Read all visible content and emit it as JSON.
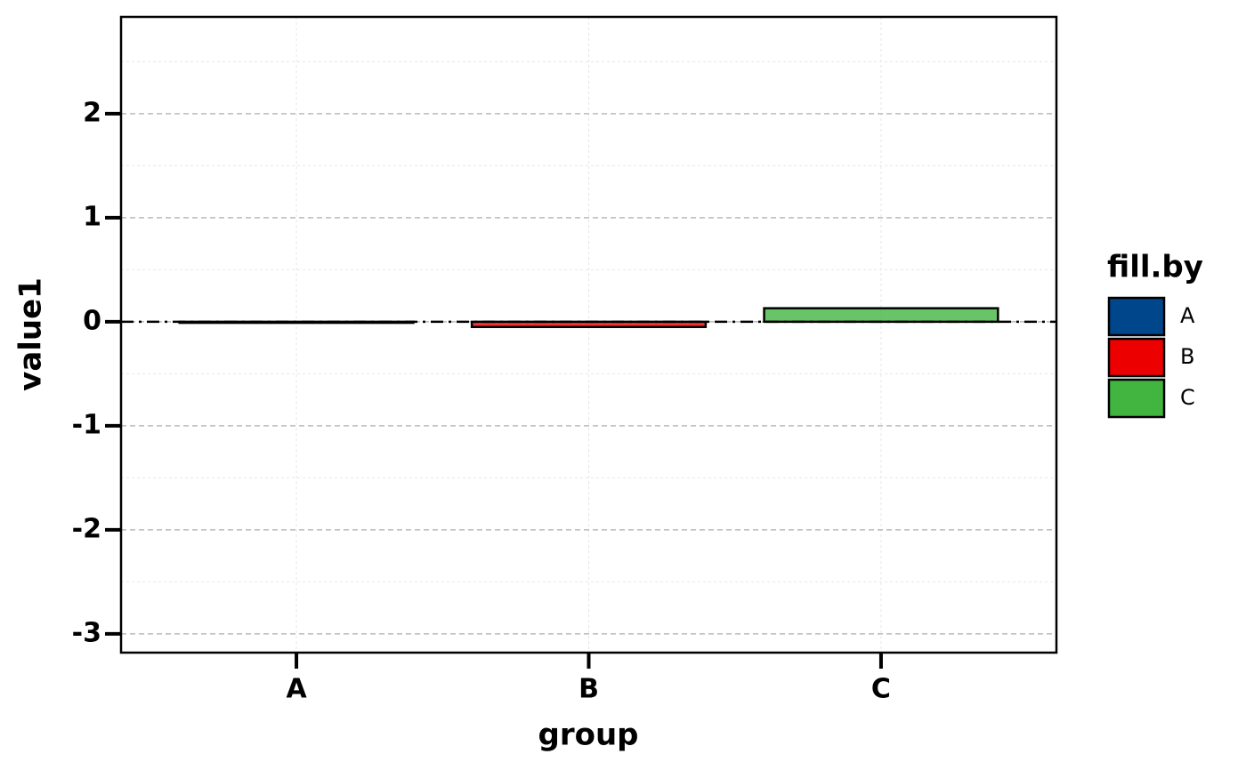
{
  "chart_data": {
    "type": "bar",
    "x_label": "group",
    "y_label": "value1",
    "categories": [
      "A",
      "B",
      "C"
    ],
    "values": [
      -0.01,
      -0.05,
      0.13
    ],
    "colors": [
      "#00468B",
      "#ED0000",
      "#42B540"
    ],
    "ylim": [
      -3.18,
      2.93
    ],
    "yticks": [
      -3,
      -2,
      -1,
      0,
      1,
      2
    ],
    "grid": true,
    "reference_line": 0,
    "legend": {
      "title": "fill.by",
      "position": "right"
    }
  }
}
